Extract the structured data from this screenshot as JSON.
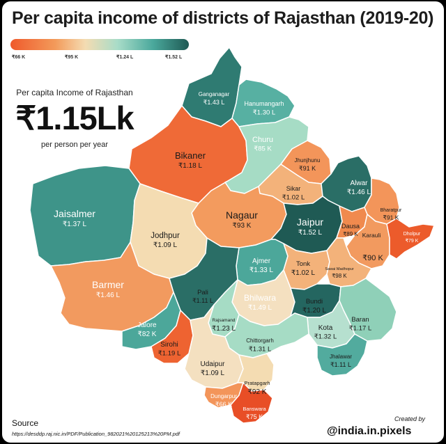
{
  "title": "Per capita income of districts of Rajasthan (2019-20)",
  "legend": {
    "labels": [
      "₹66 K",
      "₹95 K",
      "₹1.24 L",
      "₹1.52 L"
    ],
    "colors": [
      "#ef5a2c",
      "#f39a5a",
      "#f4dcb2",
      "#a8dcc8",
      "#4aa89c",
      "#1f5a54"
    ]
  },
  "state": {
    "label": "Per capita Income of Rajasthan",
    "value": "₹1.15Lk",
    "unit": "per person per year"
  },
  "districts": [
    {
      "name": "Ganganagar",
      "value": "₹1.43 L",
      "color": "#2f7b72"
    },
    {
      "name": "Hanumangarh",
      "value": "₹1.30 L",
      "color": "#57b0a2"
    },
    {
      "name": "Churu",
      "value": "₹85 K",
      "color": "#ef6a37"
    },
    {
      "name": "Bikaner",
      "value": "₹1.18 L",
      "color": "#a6dcc5"
    },
    {
      "name": "Jhunjhunu",
      "value": "₹91 K",
      "color": "#f3955a"
    },
    {
      "name": "Sikar",
      "value": "₹1.02 L",
      "color": "#f3b27a"
    },
    {
      "name": "Alwar",
      "value": "₹1.46 L",
      "color": "#2a6e66"
    },
    {
      "name": "Bharatpur",
      "value": "₹91 K",
      "color": "#f3955a"
    },
    {
      "name": "Jaisalmer",
      "value": "₹1.37 L",
      "color": "#3e9489"
    },
    {
      "name": "Nagaur",
      "value": "₹93 K",
      "color": "#f39b5e"
    },
    {
      "name": "Jaipur",
      "value": "₹1.52 L",
      "color": "#1f5a54"
    },
    {
      "name": "Dausa",
      "value": "₹89 K",
      "color": "#f08a4e"
    },
    {
      "name": "Karauli",
      "value": "",
      "color": "#f29a5f"
    },
    {
      "name": "Dholpur",
      "value": "₹79 K",
      "color": "#ec5b2b"
    },
    {
      "name": "Jodhpur",
      "value": "₹1.09 L",
      "color": "#f4dcb2"
    },
    {
      "name": "Ajmer",
      "value": "₹1.33 L",
      "color": "#4ca79a"
    },
    {
      "name": "Tonk",
      "value": "₹1.02 L",
      "color": "#f3b27a"
    },
    {
      "name": "Sawai Madhopur",
      "value": "₹98 K",
      "color": "#f3b27a"
    },
    {
      "name": "Karauli",
      "value": "₹90 K",
      "color": "#f29a5f"
    },
    {
      "name": "Barmer",
      "value": "₹1.46 L",
      "color": "#2a6e66"
    },
    {
      "name": "Pali",
      "value": "₹1.11 L",
      "color": "#f4e0c0"
    },
    {
      "name": "Bhilwara",
      "value": "₹1.49 L",
      "color": "#246660"
    },
    {
      "name": "Bundi",
      "value": "₹1.20 L",
      "color": "#a6dcc5"
    },
    {
      "name": "Rajsamand",
      "value": "₹1.23 L",
      "color": "#8fd0b8"
    },
    {
      "name": "Baran",
      "value": "₹1.17 L",
      "color": "#b6e0cf"
    },
    {
      "name": "Kota",
      "value": "₹1.32 L",
      "color": "#4ca79a"
    },
    {
      "name": "Jalore",
      "value": "₹82 K",
      "color": "#ee6331"
    },
    {
      "name": "Sirohi",
      "value": "₹1.19 L",
      "color": "#a6dcc5"
    },
    {
      "name": "Chittorgarh",
      "value": "₹1.31 L",
      "color": "#52ab9e"
    },
    {
      "name": "Jhalawar",
      "value": "₹1.11 L",
      "color": "#f4e0c0"
    },
    {
      "name": "Udaipur",
      "value": "₹1.09 L",
      "color": "#f4dcb2"
    },
    {
      "name": "Pratapgarh",
      "value": "₹92 K",
      "color": "#f3955a"
    },
    {
      "name": "Dungarpur",
      "value": "₹66 K",
      "color": "#e84e26"
    },
    {
      "name": "Banswara",
      "value": "₹75 K",
      "color": "#eb5a2c"
    }
  ],
  "source": {
    "heading": "Source",
    "url": "https://desddp.raj.nic.in/PDF/Publication_982021%20125213%20PM.pdf"
  },
  "credit": {
    "line1": "Created by",
    "handle": "@india.in.pixels"
  }
}
